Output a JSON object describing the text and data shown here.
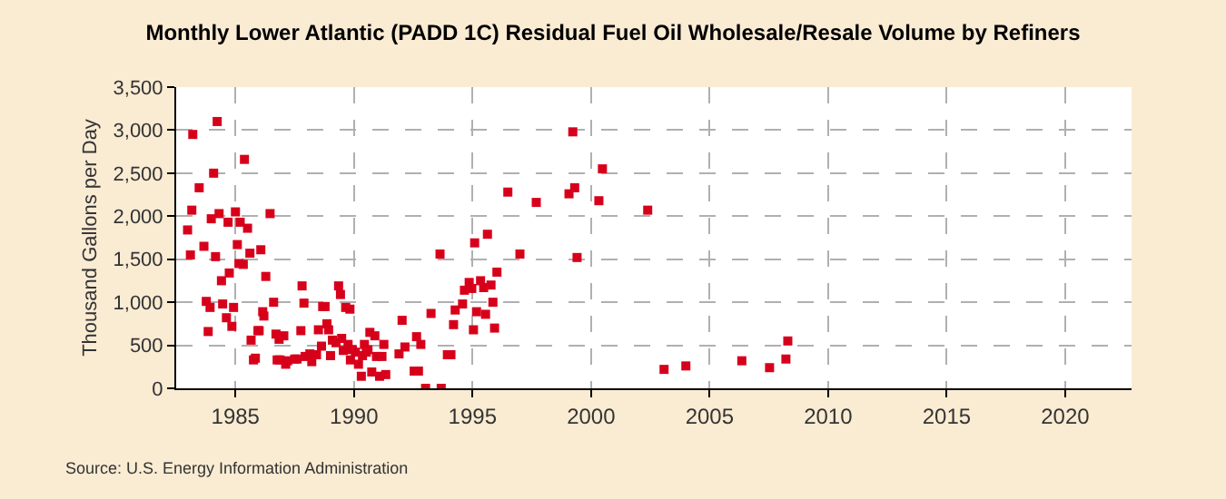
{
  "chart_data": {
    "type": "scatter",
    "title": "Monthly Lower Atlantic (PADD 1C) Residual Fuel Oil Wholesale/Resale Volume by Refiners",
    "ylabel": "Thousand Gallons per Day",
    "annotations": [
      "Source: U.S. Energy Information Administration"
    ],
    "marker": "square",
    "grid": true,
    "xlim": [
      1982.5,
      2022.8
    ],
    "xticks": [
      1985,
      1990,
      1995,
      2000,
      2005,
      2010,
      2015,
      2020
    ],
    "ylim": [
      0,
      3500
    ],
    "yticks": [
      {
        "value": 0,
        "label": "0"
      },
      {
        "value": 500,
        "label": "500"
      },
      {
        "value": 1000,
        "label": "1,000"
      },
      {
        "value": 1500,
        "label": "1,500"
      },
      {
        "value": 2000,
        "label": "2,000"
      },
      {
        "value": 2500,
        "label": "2,500"
      },
      {
        "value": 3000,
        "label": "3,000"
      },
      {
        "value": 3500,
        "label": "3,500"
      }
    ],
    "series": [
      {
        "color": "#d7001b",
        "x": [
          1982.98,
          1983.1,
          1983.16,
          1983.2,
          1983.47,
          1983.67,
          1983.77,
          1983.85,
          1983.93,
          1983.98,
          1984.08,
          1984.16,
          1984.23,
          1984.31,
          1984.41,
          1984.46,
          1984.62,
          1984.69,
          1984.74,
          1984.85,
          1984.92,
          1985.0,
          1985.08,
          1985.15,
          1985.2,
          1985.33,
          1985.38,
          1985.51,
          1985.61,
          1985.66,
          1985.76,
          1985.84,
          1985.95,
          1986.0,
          1986.07,
          1986.15,
          1986.2,
          1986.28,
          1986.46,
          1986.61,
          1986.71,
          1986.76,
          1986.84,
          1986.88,
          1987.04,
          1987.12,
          1987.2,
          1987.5,
          1987.6,
          1987.76,
          1987.81,
          1987.89,
          1987.94,
          1988.14,
          1988.22,
          1988.42,
          1988.5,
          1988.63,
          1988.68,
          1988.78,
          1988.86,
          1988.93,
          1989.01,
          1989.09,
          1989.24,
          1989.35,
          1989.43,
          1989.48,
          1989.55,
          1989.65,
          1989.75,
          1989.83,
          1989.85,
          1989.93,
          1990.06,
          1990.19,
          1990.31,
          1990.36,
          1990.44,
          1990.52,
          1990.59,
          1990.67,
          1990.75,
          1990.88,
          1990.95,
          1991.08,
          1991.18,
          1991.26,
          1991.34,
          1991.9,
          1992.03,
          1992.15,
          1992.54,
          1992.64,
          1992.72,
          1992.82,
          1993.02,
          1993.25,
          1993.63,
          1993.68,
          1993.94,
          1994.09,
          1994.2,
          1994.27,
          1994.58,
          1994.66,
          1994.86,
          1994.97,
          1995.04,
          1995.09,
          1995.17,
          1995.34,
          1995.47,
          1995.55,
          1995.63,
          1995.78,
          1995.86,
          1995.93,
          1996.03,
          1996.49,
          1997.0,
          1997.69,
          1999.07,
          1999.23,
          1999.31,
          1999.41,
          2000.33,
          2000.48,
          2002.39,
          2003.08,
          2004.0,
          2006.36,
          2007.53,
          2008.22,
          2008.3
        ],
        "values": [
          1840,
          1550,
          2070,
          2950,
          2330,
          1650,
          1010,
          660,
          940,
          1970,
          2500,
          1530,
          3100,
          2030,
          1250,
          980,
          820,
          1930,
          1340,
          720,
          940,
          2050,
          1670,
          1450,
          1930,
          1440,
          2660,
          1860,
          1570,
          560,
          330,
          350,
          670,
          670,
          1610,
          890,
          840,
          1300,
          2030,
          1000,
          630,
          330,
          570,
          330,
          610,
          280,
          320,
          340,
          340,
          670,
          1190,
          990,
          370,
          400,
          310,
          390,
          680,
          490,
          950,
          950,
          750,
          680,
          380,
          560,
          530,
          1190,
          1090,
          580,
          440,
          940,
          510,
          920,
          330,
          450,
          420,
          280,
          140,
          380,
          510,
          420,
          450,
          650,
          190,
          610,
          370,
          140,
          370,
          510,
          160,
          400,
          790,
          480,
          200,
          600,
          200,
          510,
          0,
          870,
          1560,
          0,
          390,
          390,
          740,
          910,
          980,
          1140,
          1230,
          1160,
          680,
          1690,
          890,
          1250,
          1170,
          860,
          1790,
          1200,
          1000,
          700,
          1350,
          2280,
          1560,
          2160,
          2260,
          2980,
          2330,
          1520,
          2180,
          2550,
          2070,
          220,
          260,
          320,
          240,
          340,
          550
        ]
      }
    ]
  }
}
